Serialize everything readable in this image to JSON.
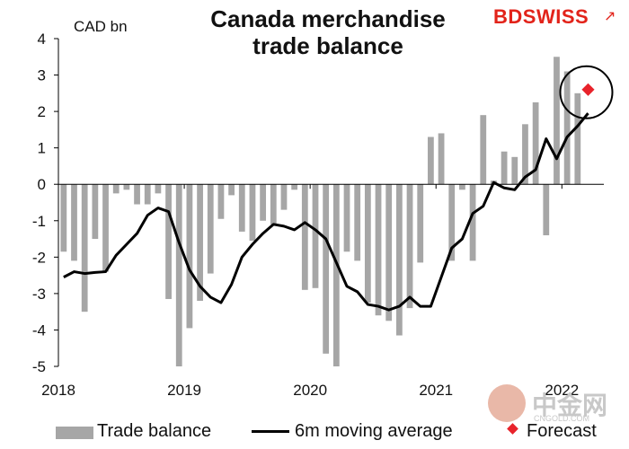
{
  "title_line1": "Canada merchandise",
  "title_line2": "trade balance",
  "brand": "BDSWISS",
  "watermark": "中金网",
  "watermark_url": "CNGOLD.COM",
  "colors": {
    "bars": "#a6a6a6",
    "line": "#000000",
    "forecast": "#e8232b",
    "brand": "#e2231a"
  },
  "chart_data": {
    "type": "bar",
    "title": "Canada merchandise trade balance",
    "ylabel": "CAD bn",
    "ylim": [
      -5,
      4
    ],
    "yticks": [
      -5,
      -4,
      -3,
      -2,
      -1,
      0,
      1,
      2,
      3,
      4
    ],
    "x_tick_labels": [
      "2018",
      "2019",
      "2020",
      "2021",
      "2022"
    ],
    "x_start": "2018-01",
    "grid": false,
    "legend_position": "bottom",
    "series": [
      {
        "name": "Trade balance",
        "type": "bar",
        "values": [
          -1.85,
          -2.1,
          -3.5,
          -1.5,
          -2.4,
          -0.25,
          -0.15,
          -0.55,
          -0.55,
          -0.25,
          -3.15,
          -5.0,
          -3.95,
          -3.2,
          -2.45,
          -0.95,
          -0.3,
          -1.3,
          -1.55,
          -1.0,
          -1.1,
          -0.7,
          -0.15,
          -2.9,
          -2.85,
          -4.65,
          -5.0,
          -1.85,
          -2.1,
          -3.25,
          -3.6,
          -3.75,
          -4.15,
          -3.4,
          -2.15,
          1.3,
          1.4,
          -2.1,
          -0.15,
          -2.1,
          1.9,
          0.1,
          0.9,
          0.75,
          1.65,
          2.25,
          -1.4,
          3.5,
          3.1,
          2.5
        ]
      },
      {
        "name": "6m moving average",
        "type": "line",
        "values": [
          -2.55,
          -2.4,
          -2.45,
          -2.42,
          -2.4,
          -1.95,
          -1.65,
          -1.35,
          -0.85,
          -0.65,
          -0.75,
          -1.6,
          -2.35,
          -2.8,
          -3.1,
          -3.25,
          -2.75,
          -2.0,
          -1.65,
          -1.35,
          -1.1,
          -1.15,
          -1.25,
          -1.05,
          -1.25,
          -1.5,
          -2.15,
          -2.8,
          -2.95,
          -3.3,
          -3.35,
          -3.45,
          -3.35,
          -3.1,
          -3.35,
          -3.35,
          -2.55,
          -1.75,
          -1.5,
          -0.8,
          -0.6,
          0.05,
          -0.1,
          -0.15,
          0.2,
          0.4,
          1.25,
          0.7,
          1.3,
          1.6,
          1.95
        ]
      },
      {
        "name": "Forecast",
        "type": "scatter",
        "index": 50,
        "value": 2.6
      }
    ]
  }
}
